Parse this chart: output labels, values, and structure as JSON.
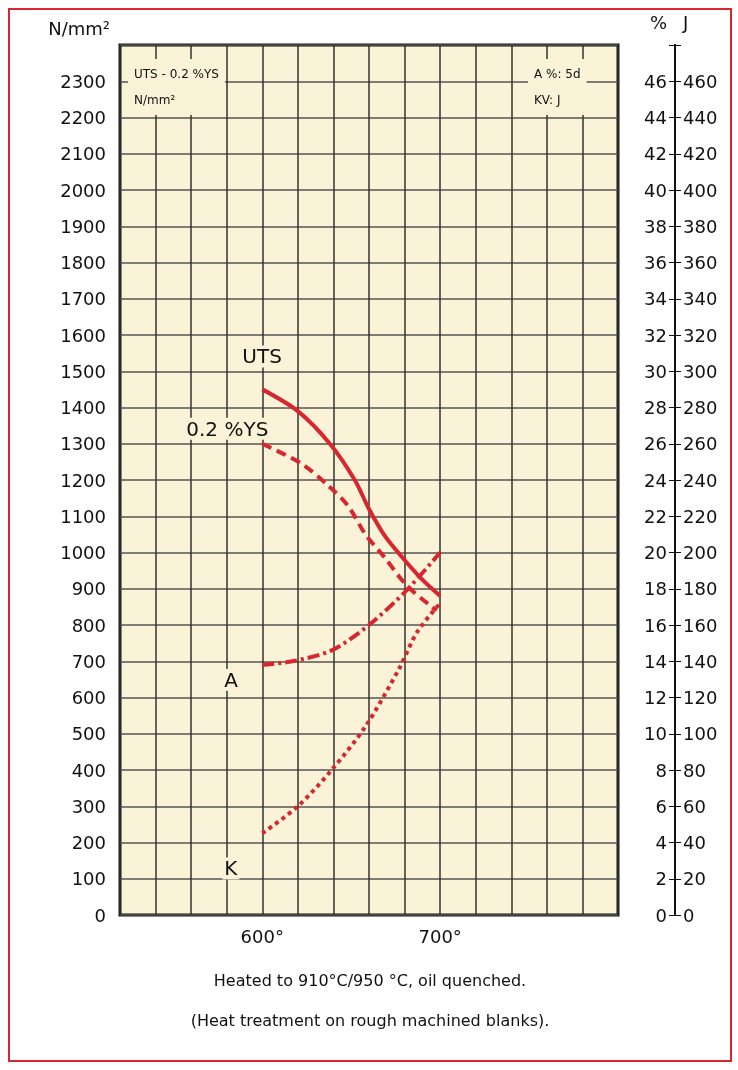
{
  "chart_data": {
    "type": "line",
    "ylabel": "N/mm²",
    "y2label": "%",
    "y3label": "J",
    "xlim": [
      520,
      800
    ],
    "xticks": [
      {
        "value": 520,
        "label": null
      },
      {
        "value": 540,
        "label": null
      },
      {
        "value": 560,
        "label": null
      },
      {
        "value": 580,
        "label": null
      },
      {
        "value": 600,
        "label": "600°"
      },
      {
        "value": 620,
        "label": null
      },
      {
        "value": 640,
        "label": null
      },
      {
        "value": 660,
        "label": null
      },
      {
        "value": 680,
        "label": null
      },
      {
        "value": 700,
        "label": "700°"
      },
      {
        "value": 720,
        "label": null
      },
      {
        "value": 740,
        "label": null
      },
      {
        "value": 760,
        "label": null
      },
      {
        "value": 780,
        "label": null
      },
      {
        "value": 800,
        "label": null
      }
    ],
    "ylim": [
      0,
      2400
    ],
    "yticks": [
      0,
      100,
      200,
      300,
      400,
      500,
      600,
      700,
      800,
      900,
      1000,
      1100,
      1200,
      1300,
      1400,
      1500,
      1600,
      1700,
      1800,
      1900,
      2000,
      2100,
      2200,
      2300
    ],
    "y2lim": [
      0,
      48
    ],
    "y2ticks": [
      0,
      2,
      4,
      6,
      8,
      10,
      12,
      14,
      16,
      18,
      20,
      22,
      24,
      26,
      28,
      30,
      32,
      34,
      36,
      38,
      40,
      42,
      44,
      46
    ],
    "y3lim": [
      0,
      480
    ],
    "y3ticks": [
      0,
      20,
      40,
      60,
      80,
      100,
      120,
      140,
      160,
      180,
      200,
      220,
      240,
      260,
      280,
      300,
      320,
      340,
      360,
      380,
      400,
      420,
      440,
      460
    ],
    "grid": true,
    "legend": false,
    "marker": "none",
    "series": [
      {
        "name": "UTS",
        "color": "#d7262e",
        "line_style": "solid",
        "x": [
          600,
          620,
          638,
          652,
          660,
          669,
          679,
          690,
          700
        ],
        "values": [
          1450,
          1390,
          1300,
          1200,
          1120,
          1045,
          985,
          925,
          880
        ]
      },
      {
        "name": "0.2 %YS",
        "color": "#d7262e",
        "line_style": "dashed",
        "x": [
          600,
          622,
          637,
          648,
          658,
          669,
          681,
          694,
          698
        ],
        "values": [
          1300,
          1245,
          1185,
          1130,
          1050,
          985,
          910,
          855,
          840
        ]
      },
      {
        "name": "A",
        "color": "#d7262e",
        "line_style": "dashdot",
        "axis": "y2",
        "x": [
          600,
          617,
          639,
          660,
          681,
          700
        ],
        "values": [
          13.8,
          14.0,
          14.6,
          16.0,
          17.9,
          20.0
        ]
      },
      {
        "name": "K",
        "color": "#d7262e",
        "line_style": "dotted",
        "axis": "y3",
        "x": [
          600,
          620,
          639,
          658,
          677,
          687,
          700
        ],
        "values": [
          45,
          60,
          80,
          104,
          136,
          156,
          172
        ]
      }
    ],
    "annotations": [
      "UTS - 0.2 %YS\nN/mm²",
      "A %: 5d\nKV: J",
      "Heated to 910°C/950 °C, oil quenched.",
      "(Heat treatment on rough machined blanks)."
    ]
  }
}
